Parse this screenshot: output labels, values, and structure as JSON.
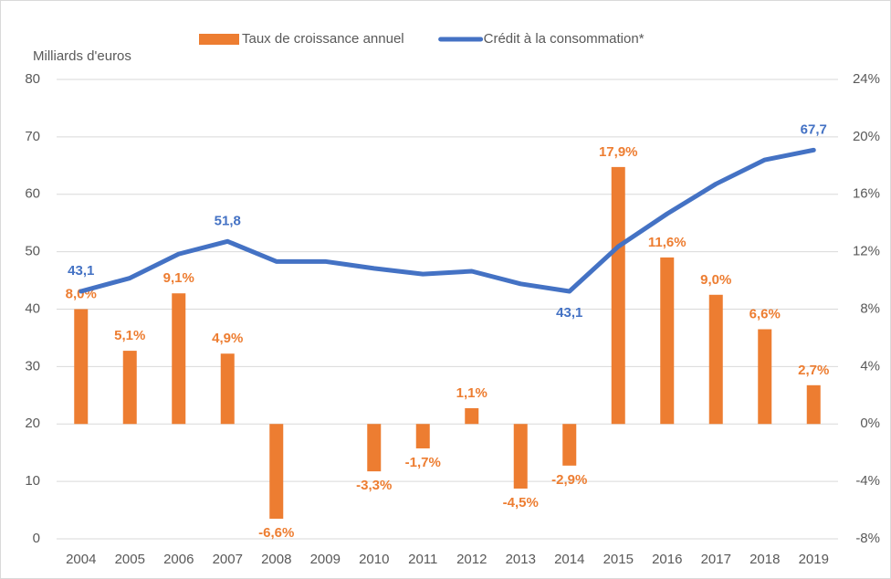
{
  "chart_data": {
    "type": "bar+line",
    "y_label": "Milliards d'euros",
    "categories": [
      "2004",
      "2005",
      "2006",
      "2007",
      "2008",
      "2009",
      "2010",
      "2011",
      "2012",
      "2013",
      "2014",
      "2015",
      "2016",
      "2017",
      "2018",
      "2019"
    ],
    "series": [
      {
        "name": "Taux de croissance annuel",
        "type": "bar",
        "axis": "y2",
        "color": "#ed7d31",
        "values": [
          8.0,
          5.1,
          9.1,
          4.9,
          -6.6,
          0,
          -3.3,
          -1.7,
          1.1,
          -4.5,
          -2.9,
          17.9,
          11.6,
          9.0,
          6.6,
          2.7
        ],
        "value_labels": [
          "8,0%",
          "5,1%",
          "9,1%",
          "4,9%",
          "-6,6%",
          null,
          "-3,3%",
          "-1,7%",
          "1,1%",
          "-4,5%",
          "-2,9%",
          "17,9%",
          "11,6%",
          "9,0%",
          "6,6%",
          "2,7%"
        ]
      },
      {
        "name": "Crédit à la consommation*",
        "type": "line",
        "axis": "y",
        "color": "#4472c4",
        "values": [
          43.1,
          45.4,
          49.6,
          51.8,
          48.3,
          48.3,
          47.1,
          46.1,
          46.6,
          44.4,
          43.1,
          50.9,
          56.6,
          61.8,
          66.0,
          67.7
        ],
        "value_labels": [
          "43,1",
          null,
          null,
          "51,8",
          null,
          null,
          null,
          null,
          null,
          null,
          "43,1",
          null,
          null,
          null,
          null,
          "67,7"
        ]
      }
    ],
    "ylim": [
      0,
      80
    ],
    "yticks": [
      0,
      10,
      20,
      30,
      40,
      50,
      60,
      70,
      80
    ],
    "y2lim": [
      -8,
      24
    ],
    "y2ticks": [
      {
        "value": -8,
        "label": "-8%"
      },
      {
        "value": -4,
        "label": "-4%"
      },
      {
        "value": 0,
        "label": "0%"
      },
      {
        "value": 4,
        "label": "4%"
      },
      {
        "value": 8,
        "label": "8%"
      },
      {
        "value": 12,
        "label": "12%"
      },
      {
        "value": 16,
        "label": "16%"
      },
      {
        "value": 20,
        "label": "20%"
      },
      {
        "value": 24,
        "label": "24%"
      }
    ],
    "grid": true,
    "legend": "top"
  }
}
